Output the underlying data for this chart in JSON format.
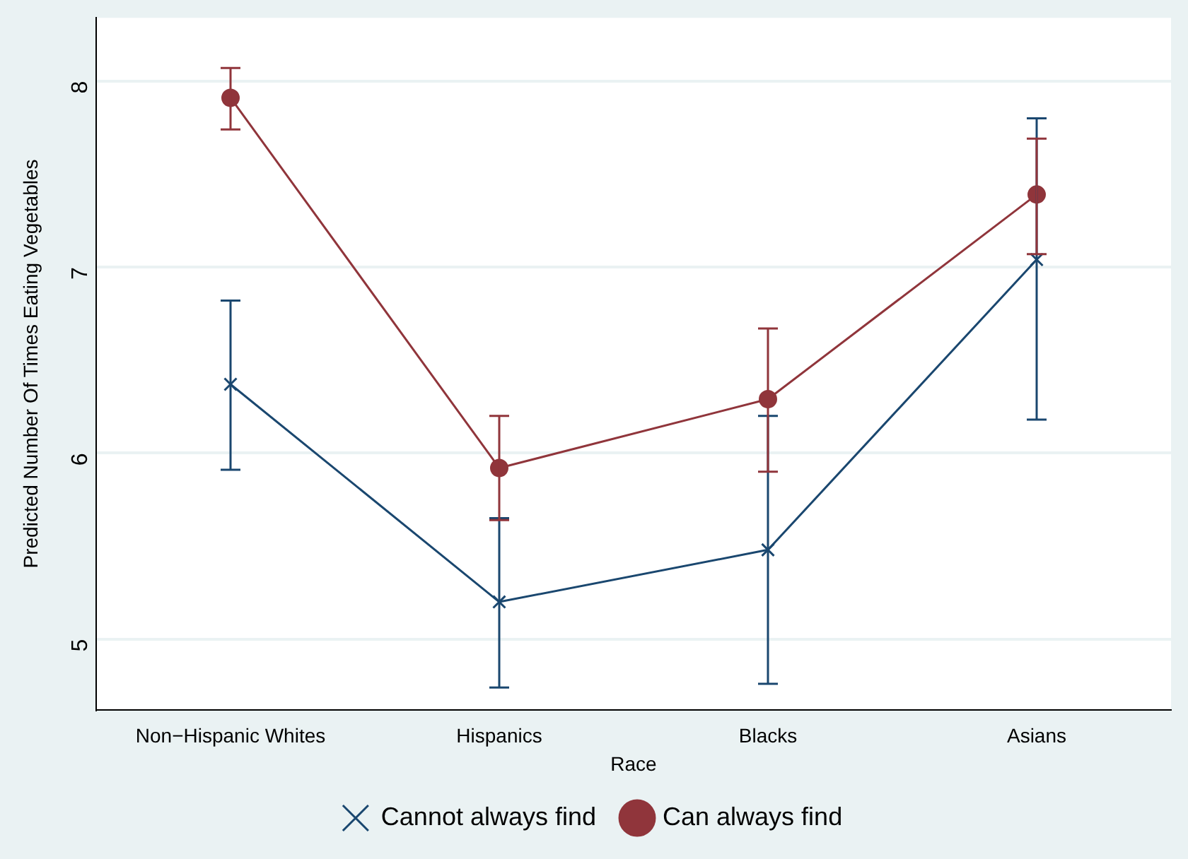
{
  "chart_data": {
    "type": "line",
    "xlabel": "Race",
    "ylabel": "Predicted Number Of Times Eating Vegetables",
    "categories": [
      "Non−Hispanic Whites",
      "Hispanics",
      "Blacks",
      "Asians"
    ],
    "series": [
      {
        "name": "Cannot always find",
        "color": "#1a476f",
        "marker": "cross",
        "values": [
          6.37,
          5.2,
          5.48,
          7.04
        ],
        "errors": [
          [
            5.91,
            6.82
          ],
          [
            4.74,
            5.65
          ],
          [
            4.76,
            6.2
          ],
          [
            6.18,
            7.8
          ]
        ]
      },
      {
        "name": "Can always find",
        "color": "#90353b",
        "marker": "circle",
        "values": [
          7.91,
          5.92,
          6.29,
          7.39
        ],
        "errors": [
          [
            7.74,
            8.07
          ],
          [
            5.64,
            6.2
          ],
          [
            5.9,
            6.67
          ],
          [
            7.07,
            7.69
          ]
        ]
      }
    ],
    "ylim": [
      4.62,
      8.34
    ],
    "yticks": [
      5,
      6,
      7,
      8
    ],
    "grid": "y",
    "legend": "bottom",
    "line_style": "solid"
  }
}
